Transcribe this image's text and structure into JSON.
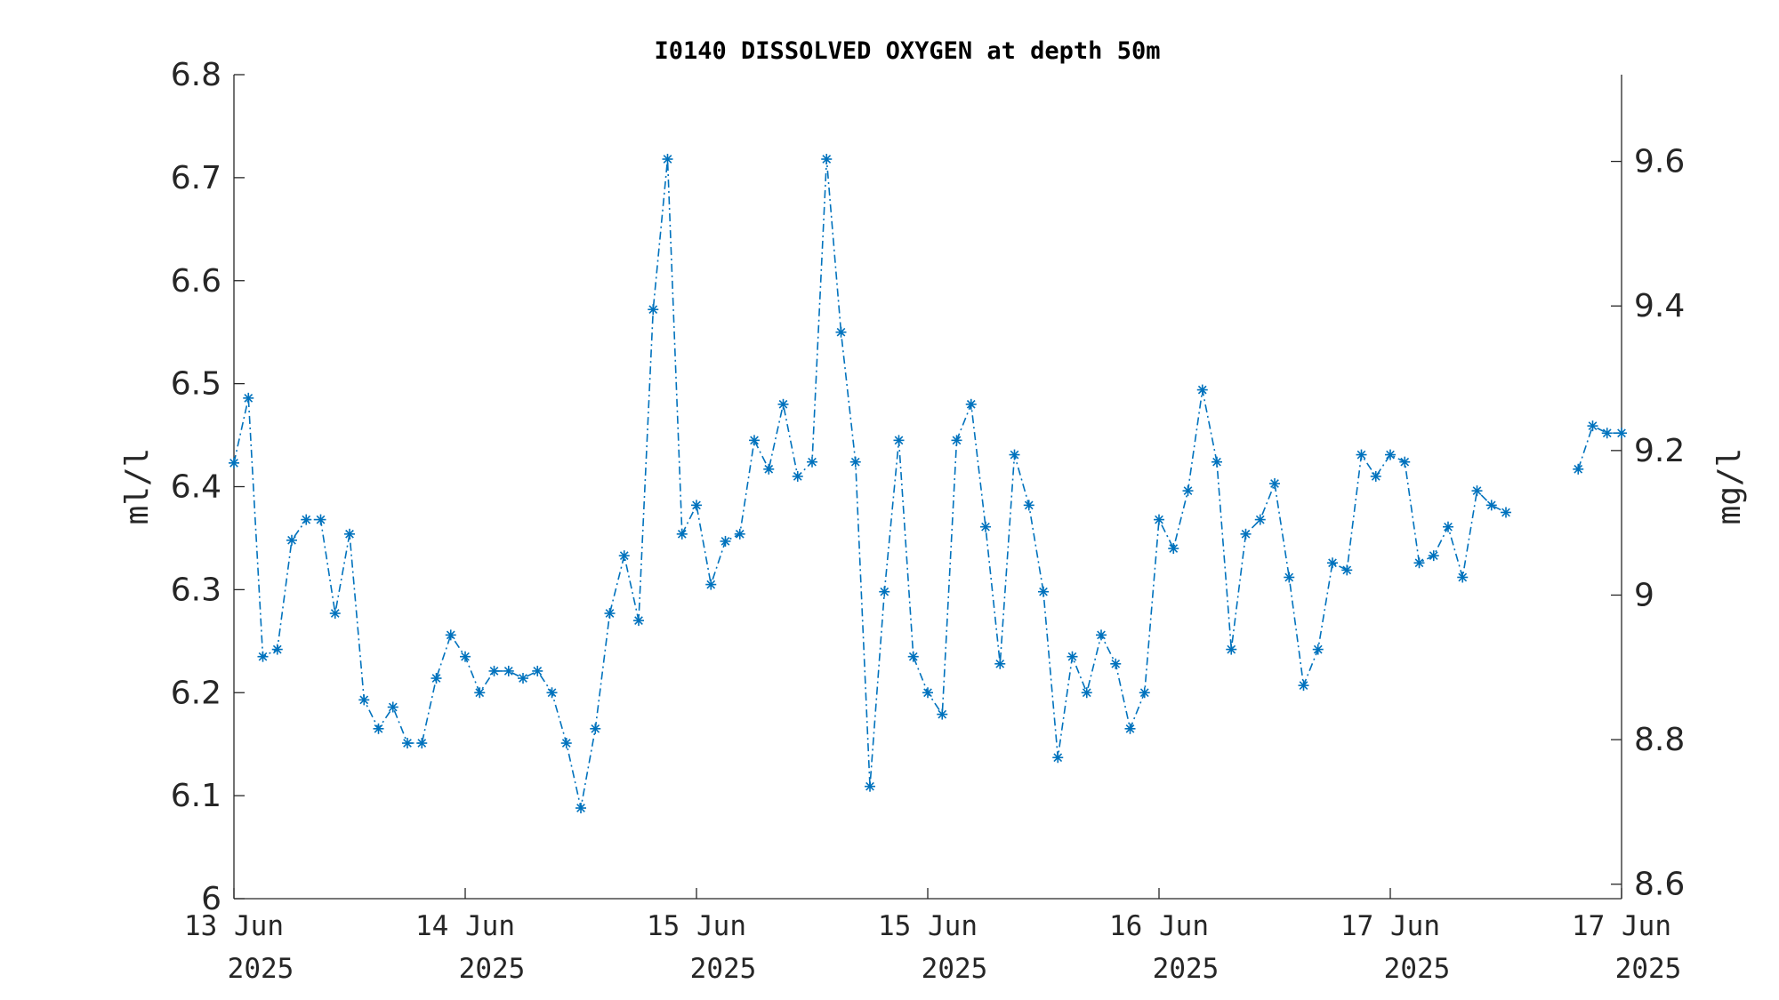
{
  "chart_data": {
    "type": "line",
    "title": "I0140 DISSOLVED OXYGEN at depth 50m",
    "ylabel": "ml/l",
    "y2label": "mg/l",
    "ylim": [
      6.0,
      6.8
    ],
    "y2lim": [
      8.58,
      9.72
    ],
    "yticks": [
      "6",
      "6.1",
      "6.2",
      "6.3",
      "6.4",
      "6.5",
      "6.6",
      "6.7",
      "6.8"
    ],
    "y2ticks": [
      "8.6",
      "8.8",
      "9",
      "9.2",
      "9.4",
      "9.6"
    ],
    "y2tick_values": [
      8.6,
      8.8,
      9.0,
      9.2,
      9.4,
      9.6
    ],
    "xticks": [
      {
        "day": "13 Jun",
        "year": "2025"
      },
      {
        "day": "14 Jun",
        "year": "2025"
      },
      {
        "day": "15 Jun",
        "year": "2025"
      },
      {
        "day": "15 Jun",
        "year": "2025"
      },
      {
        "day": "16 Jun",
        "year": "2025"
      },
      {
        "day": "17 Jun",
        "year": "2025"
      },
      {
        "day": "17 Jun",
        "year": "2025"
      }
    ],
    "x_range_hours": [
      0,
      96
    ],
    "grid": false,
    "line_style": "dash-dot",
    "marker": "asterisk",
    "color": "#0072BD",
    "series": [
      {
        "values": [
          6.423,
          6.486,
          6.235,
          6.242,
          6.348,
          6.368,
          6.368,
          6.277,
          6.354,
          6.193,
          6.165,
          6.186,
          6.151,
          6.151,
          6.214,
          6.256,
          6.235,
          6.2,
          6.221,
          6.221,
          6.214,
          6.221,
          6.2,
          6.151,
          6.088,
          6.165,
          6.277,
          6.333,
          6.27,
          6.572,
          6.718,
          6.354,
          6.382,
          6.305,
          6.347,
          6.354,
          6.445,
          6.417,
          6.48,
          6.41,
          6.424,
          6.718,
          6.55,
          6.424,
          6.109,
          6.298,
          6.445,
          6.235,
          6.2,
          6.179,
          6.445,
          6.48,
          6.361,
          6.228,
          6.431,
          6.382,
          6.298,
          6.137,
          6.235,
          6.2,
          6.256,
          6.228,
          6.165,
          6.2,
          6.368,
          6.34,
          6.396,
          6.494,
          6.424,
          6.242,
          6.354,
          6.368,
          6.403,
          6.312,
          6.207,
          6.242,
          6.326,
          6.319,
          6.431,
          6.41,
          6.431,
          6.424,
          6.326,
          6.333,
          6.361,
          6.312,
          6.396,
          6.382,
          6.375,
          null,
          null,
          null,
          null,
          6.417,
          6.459,
          6.452,
          6.452
        ]
      }
    ]
  }
}
